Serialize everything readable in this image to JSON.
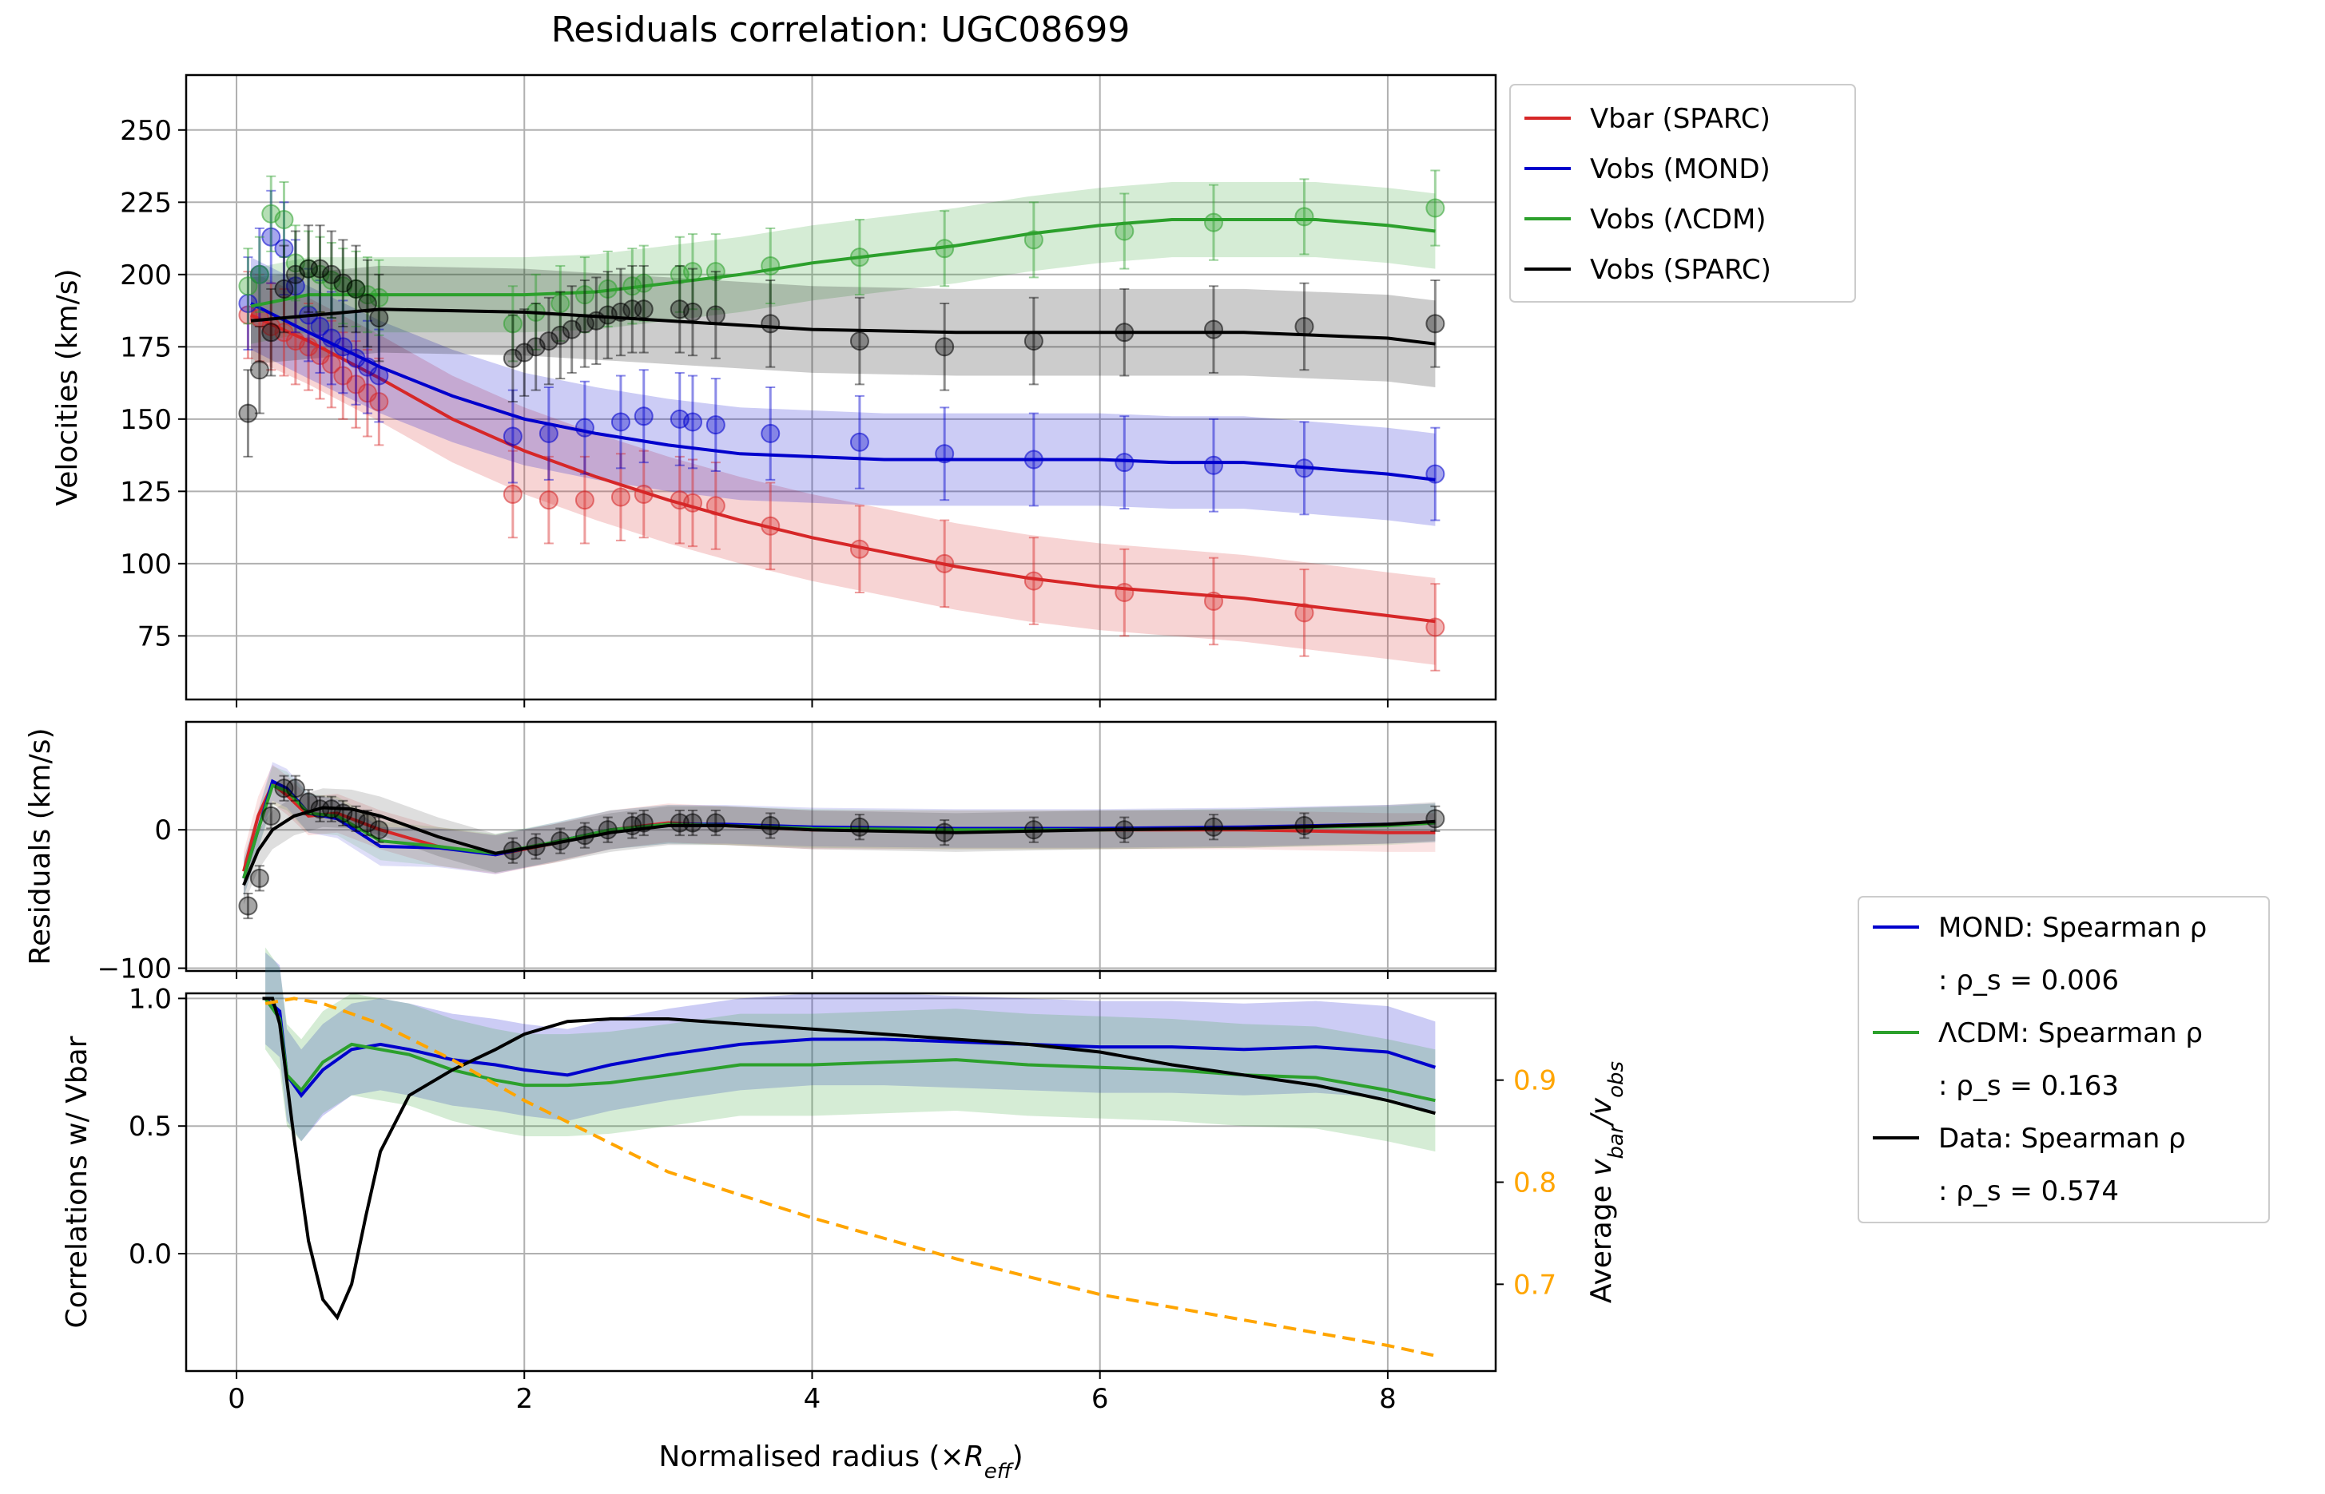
{
  "chart_data": [
    {
      "panel": "velocities",
      "type": "scatter",
      "title": "Residuals correlation: UGC08699",
      "xlabel": "",
      "ylabel": "Velocities (km/s)",
      "xlim": [
        -0.35,
        8.75
      ],
      "ylim": [
        53,
        269
      ],
      "xticks": [
        0,
        2,
        4,
        6,
        8
      ],
      "yticks": [
        75,
        100,
        125,
        150,
        175,
        200,
        225,
        250
      ],
      "grid": true,
      "legend_position": "outside right, top",
      "series": [
        {
          "name": "Vbar (SPARC)",
          "color": "#d62728",
          "x": [
            0.08,
            0.16,
            0.24,
            0.33,
            0.41,
            0.5,
            0.58,
            0.66,
            0.74,
            0.83,
            0.91,
            0.99,
            1.92,
            2.17,
            2.42,
            2.67,
            2.83,
            3.08,
            3.17,
            3.33,
            3.71,
            4.33,
            4.92,
            5.54,
            6.17,
            6.79,
            7.42,
            8.33
          ],
          "y": [
            186,
            185,
            182,
            180,
            177,
            175,
            172,
            169,
            165,
            162,
            159,
            156,
            124,
            122,
            122,
            123,
            124,
            122,
            121,
            120,
            113,
            105,
            100,
            94,
            90,
            87,
            83,
            78
          ],
          "fit_x": [
            0.1,
            0.5,
            1.0,
            1.5,
            2.0,
            2.5,
            3.0,
            3.5,
            4.0,
            4.5,
            5.0,
            5.5,
            6.0,
            6.5,
            7.0,
            7.5,
            8.0,
            8.33
          ],
          "fit_y": [
            186,
            177,
            164,
            150,
            139,
            130,
            122,
            115,
            109,
            104,
            99,
            95,
            92,
            90,
            88,
            85,
            82,
            80
          ],
          "band_halfwidth": 15
        },
        {
          "name": "Vobs (MOND)",
          "color": "#0000cc",
          "x": [
            0.08,
            0.16,
            0.24,
            0.33,
            0.41,
            0.5,
            0.58,
            0.66,
            0.74,
            0.83,
            0.91,
            0.99,
            1.92,
            2.17,
            2.42,
            2.67,
            2.83,
            3.08,
            3.17,
            3.33,
            3.71,
            4.33,
            4.92,
            5.54,
            6.17,
            6.79,
            7.42,
            8.33
          ],
          "y": [
            190,
            200,
            213,
            209,
            196,
            186,
            182,
            178,
            175,
            171,
            168,
            165,
            144,
            145,
            147,
            149,
            151,
            150,
            149,
            148,
            145,
            142,
            138,
            136,
            135,
            134,
            133,
            131
          ],
          "fit_x": [
            0.1,
            0.5,
            1.0,
            1.5,
            2.0,
            2.5,
            3.0,
            3.5,
            4.0,
            4.5,
            5.0,
            5.5,
            6.0,
            6.5,
            7.0,
            7.5,
            8.0,
            8.33
          ],
          "fit_y": [
            190,
            180,
            168,
            158,
            150,
            145,
            141,
            138,
            137,
            136,
            136,
            136,
            136,
            135,
            135,
            133,
            131,
            129
          ],
          "band_halfwidth": 16
        },
        {
          "name": "Vobs (ΛCDM)",
          "color": "#2ca02c",
          "x": [
            0.08,
            0.16,
            0.24,
            0.33,
            0.41,
            0.5,
            0.58,
            0.66,
            0.74,
            0.83,
            0.91,
            0.99,
            1.92,
            2.08,
            2.25,
            2.42,
            2.58,
            2.75,
            2.83,
            3.08,
            3.17,
            3.33,
            3.71,
            4.33,
            4.92,
            5.54,
            6.17,
            6.79,
            7.42,
            8.33
          ],
          "y": [
            196,
            200,
            221,
            219,
            204,
            202,
            200,
            198,
            196,
            195,
            193,
            192,
            183,
            187,
            190,
            193,
            195,
            196,
            197,
            200,
            201,
            201,
            203,
            206,
            209,
            212,
            215,
            218,
            220,
            223
          ],
          "fit_x": [
            0.1,
            0.5,
            1.0,
            1.5,
            2.0,
            2.5,
            3.0,
            3.5,
            4.0,
            4.5,
            5.0,
            5.5,
            6.0,
            6.5,
            7.0,
            7.5,
            8.0,
            8.33
          ],
          "fit_y": [
            189,
            193,
            193,
            193,
            193,
            194,
            197,
            200,
            204,
            207,
            210,
            214,
            217,
            219,
            219,
            219,
            217,
            215
          ],
          "band_halfwidth": 13
        },
        {
          "name": "Vobs (SPARC)",
          "color": "#000000",
          "x": [
            0.08,
            0.16,
            0.24,
            0.33,
            0.41,
            0.5,
            0.58,
            0.66,
            0.74,
            0.83,
            0.91,
            0.99,
            1.92,
            2.0,
            2.08,
            2.17,
            2.25,
            2.33,
            2.42,
            2.5,
            2.58,
            2.67,
            2.75,
            2.83,
            3.08,
            3.17,
            3.33,
            3.71,
            4.33,
            4.92,
            5.54,
            6.17,
            6.79,
            7.42,
            8.33
          ],
          "y": [
            152,
            167,
            180,
            195,
            200,
            202,
            202,
            200,
            197,
            195,
            190,
            185,
            171,
            173,
            175,
            177,
            179,
            181,
            183,
            184,
            186,
            187,
            188,
            188,
            188,
            187,
            186,
            183,
            177,
            175,
            177,
            180,
            181,
            182,
            183
          ],
          "fit_x": [
            0.1,
            1.0,
            2.0,
            3.0,
            4.0,
            5.0,
            6.0,
            7.0,
            8.0,
            8.33
          ],
          "fit_y": [
            184,
            188,
            187,
            184,
            181,
            180,
            180,
            180,
            178,
            176
          ],
          "band_halfwidth": 15
        }
      ]
    },
    {
      "panel": "residuals",
      "type": "scatter",
      "xlabel": "",
      "ylabel": "Residuals (km/s)",
      "xlim": [
        -0.35,
        8.75
      ],
      "ylim": [
        -102,
        78
      ],
      "xticks": [
        0,
        2,
        4,
        6,
        8
      ],
      "yticks": [
        -100,
        0
      ],
      "grid": true,
      "series": [
        {
          "name": "Vbar (SPARC)",
          "color": "#d62728",
          "fit_x": [
            0.05,
            0.15,
            0.25,
            0.35,
            0.5,
            0.7,
            1.0,
            1.4,
            1.8,
            2.2,
            2.6,
            3.0,
            3.4,
            4.0,
            5.0,
            6.0,
            7.0,
            8.0,
            8.33
          ],
          "fit_y": [
            -30,
            10,
            33,
            25,
            10,
            12,
            0,
            -12,
            -18,
            -10,
            0,
            5,
            3,
            0,
            0,
            0,
            0,
            -2,
            -2
          ]
        },
        {
          "name": "Vobs (MOND)",
          "color": "#0000cc",
          "fit_x": [
            0.05,
            0.15,
            0.25,
            0.35,
            0.5,
            0.7,
            1.0,
            1.4,
            1.8,
            2.2,
            2.6,
            3.0,
            3.4,
            4.0,
            5.0,
            6.0,
            7.0,
            8.0,
            8.33
          ],
          "fit_y": [
            -35,
            0,
            35,
            30,
            12,
            8,
            -12,
            -13,
            -18,
            -9,
            0,
            4,
            4,
            2,
            1,
            1,
            2,
            4,
            5
          ]
        },
        {
          "name": "Vobs (ΛCDM)",
          "color": "#2ca02c",
          "fit_x": [
            0.05,
            0.15,
            0.25,
            0.35,
            0.5,
            0.7,
            1.0,
            1.4,
            1.8,
            2.2,
            2.6,
            3.0,
            3.4,
            4.0,
            5.0,
            6.0,
            7.0,
            8.0,
            8.33
          ],
          "fit_y": [
            -35,
            0,
            32,
            28,
            12,
            10,
            -8,
            -12,
            -17,
            -9,
            0,
            4,
            3,
            1,
            0,
            0,
            1,
            3,
            5
          ]
        },
        {
          "name": "Vobs (SPARC)",
          "color": "#000000",
          "x": [
            0.08,
            0.16,
            0.24,
            0.33,
            0.41,
            0.5,
            0.58,
            0.66,
            0.74,
            0.83,
            0.91,
            0.99,
            1.92,
            2.08,
            2.25,
            2.42,
            2.58,
            2.75,
            2.83,
            3.08,
            3.17,
            3.33,
            3.71,
            4.33,
            4.92,
            5.54,
            6.17,
            6.79,
            7.42,
            8.33
          ],
          "y": [
            -55,
            -35,
            10,
            30,
            30,
            20,
            15,
            15,
            12,
            8,
            5,
            0,
            -15,
            -12,
            -8,
            -4,
            0,
            3,
            5,
            5,
            5,
            5,
            3,
            2,
            -2,
            0,
            0,
            2,
            3,
            8
          ],
          "fit_x": [
            0.05,
            0.15,
            0.25,
            0.4,
            0.6,
            0.8,
            1.0,
            1.4,
            1.8,
            2.2,
            2.6,
            3.0,
            3.4,
            4.0,
            5.0,
            6.0,
            7.0,
            8.0,
            8.33
          ],
          "fit_y": [
            -40,
            -15,
            0,
            10,
            16,
            15,
            10,
            -5,
            -17,
            -10,
            -2,
            3,
            3,
            0,
            -2,
            0,
            1,
            4,
            6
          ]
        }
      ]
    },
    {
      "panel": "correlations",
      "type": "line",
      "xlabel": "Normalised radius (×R_eff)",
      "xlabel_main": "Normalised radius (×",
      "xlabel_sym": "R",
      "xlabel_sub": "eff",
      "xlabel_close": ")",
      "ylabel": "Correlations w/ Vbar",
      "y2label": "Average v_bar/v_obs",
      "y2label_main": "Average ",
      "y2label_sym1": "v",
      "y2label_sub1": "bar",
      "y2label_sym2": "/v",
      "y2label_sub2": "obs",
      "xlim": [
        -0.35,
        8.75
      ],
      "ylim": [
        -0.46,
        1.02
      ],
      "y2lim": [
        0.615,
        0.985
      ],
      "xticks": [
        0,
        2,
        4,
        6,
        8
      ],
      "yticks": [
        0.0,
        0.5,
        1.0
      ],
      "ytick_labels": [
        "0.0",
        "0.5",
        "1.0"
      ],
      "y2ticks": [
        0.7,
        0.8,
        0.9
      ],
      "y2tick_labels": [
        "0.7",
        "0.8",
        "0.9"
      ],
      "grid": true,
      "legend_position": "outside right, lower",
      "series": [
        {
          "name": "MOND: Spearman ρ",
          "stat": ": ρ_s = 0.006",
          "color": "#0000cc",
          "x": [
            0.2,
            0.3,
            0.35,
            0.45,
            0.6,
            0.8,
            1.0,
            1.2,
            1.5,
            1.8,
            2.0,
            2.3,
            2.6,
            3.0,
            3.5,
            4.0,
            4.5,
            5.0,
            5.5,
            6.0,
            6.5,
            7.0,
            7.5,
            8.0,
            8.33
          ],
          "y": [
            1.0,
            0.95,
            0.7,
            0.62,
            0.72,
            0.8,
            0.82,
            0.8,
            0.76,
            0.74,
            0.72,
            0.7,
            0.74,
            0.78,
            0.82,
            0.84,
            0.84,
            0.83,
            0.82,
            0.81,
            0.81,
            0.8,
            0.81,
            0.79,
            0.73
          ],
          "band_halfwidth": 0.18
        },
        {
          "name": "ΛCDM: Spearman ρ",
          "stat": ": ρ_s = 0.163",
          "color": "#2ca02c",
          "x": [
            0.2,
            0.3,
            0.35,
            0.45,
            0.6,
            0.8,
            1.0,
            1.2,
            1.5,
            1.8,
            2.0,
            2.3,
            2.6,
            3.0,
            3.5,
            4.0,
            4.5,
            5.0,
            5.5,
            6.0,
            6.5,
            7.0,
            7.5,
            8.0,
            8.33
          ],
          "y": [
            1.0,
            0.92,
            0.7,
            0.64,
            0.75,
            0.82,
            0.8,
            0.78,
            0.72,
            0.68,
            0.66,
            0.66,
            0.67,
            0.7,
            0.74,
            0.74,
            0.75,
            0.76,
            0.74,
            0.73,
            0.72,
            0.7,
            0.69,
            0.64,
            0.6
          ],
          "band_halfwidth": 0.2
        },
        {
          "name": "Data: Spearman ρ",
          "stat": ": ρ_s = 0.574",
          "color": "#000000",
          "x": [
            0.18,
            0.25,
            0.3,
            0.4,
            0.5,
            0.6,
            0.7,
            0.8,
            0.9,
            1.0,
            1.2,
            1.5,
            1.8,
            2.0,
            2.3,
            2.6,
            3.0,
            3.5,
            4.0,
            4.5,
            5.0,
            5.5,
            6.0,
            6.5,
            7.0,
            7.5,
            8.0,
            8.33
          ],
          "y": [
            1.0,
            1.0,
            0.9,
            0.45,
            0.05,
            -0.18,
            -0.25,
            -0.12,
            0.15,
            0.4,
            0.62,
            0.72,
            0.8,
            0.86,
            0.91,
            0.92,
            0.92,
            0.9,
            0.88,
            0.86,
            0.84,
            0.82,
            0.79,
            0.74,
            0.7,
            0.66,
            0.6,
            0.55
          ]
        },
        {
          "name": "Average v_bar/v_obs",
          "axis": "right",
          "style": "dashed",
          "color": "#ffa500",
          "x": [
            0.2,
            0.4,
            0.6,
            1.0,
            1.5,
            2.0,
            3.0,
            4.0,
            5.0,
            6.0,
            7.0,
            8.0,
            8.33
          ],
          "y": [
            0.975,
            0.98,
            0.975,
            0.955,
            0.92,
            0.88,
            0.81,
            0.765,
            0.725,
            0.69,
            0.665,
            0.64,
            0.63
          ]
        }
      ]
    }
  ]
}
